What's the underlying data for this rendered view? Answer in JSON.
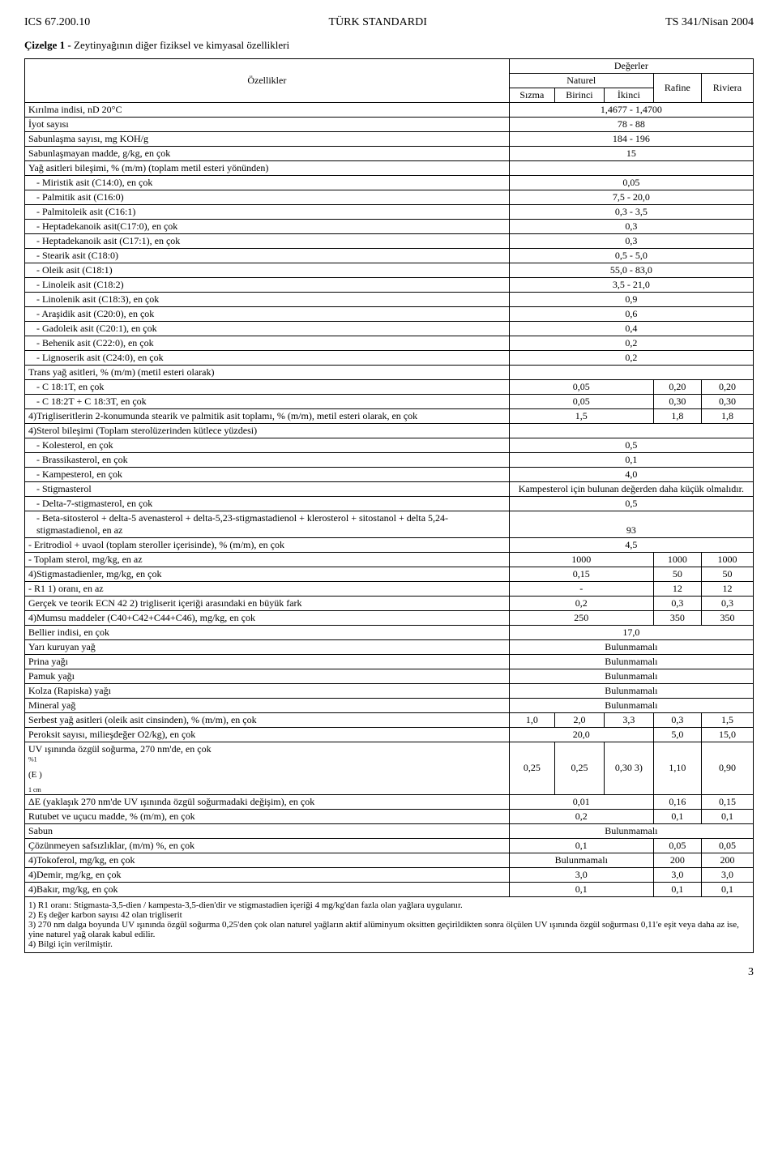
{
  "header": {
    "left": "ICS 67.200.10",
    "center": "TÜRK STANDARDI",
    "right": "TS 341/Nisan 2004"
  },
  "title_bold": "Çizelge 1 -",
  "title_rest": " Zeytinyağının diğer fiziksel ve kimyasal özellikleri",
  "col_headers": {
    "ozellikler": "Özellikler",
    "degerler": "Değerler",
    "naturel": "Naturel",
    "sizma": "Sızma",
    "birinci": "Birinci",
    "ikinci": "İkinci",
    "rafine": "Rafine",
    "riviera": "Riviera"
  },
  "rows": {
    "r1": {
      "label": "Kırılma indisi, nD 20°C",
      "val": "1,4677 - 1,4700"
    },
    "r2": {
      "label": "İyot sayısı",
      "val": "78 - 88"
    },
    "r3": {
      "label": "Sabunlaşma sayısı, mg KOH/g",
      "val": "184 - 196"
    },
    "r4": {
      "label": "Sabunlaşmayan madde, g/kg, en çok",
      "val": "15"
    },
    "r5": {
      "label": "Yağ asitleri bileşimi, % (m/m) (toplam metil esteri yönünden)"
    },
    "r5a": {
      "label": "- Miristik asit (C14:0), en çok",
      "val": "0,05"
    },
    "r5b": {
      "label": "- Palmitik asit (C16:0)",
      "val": "7,5 - 20,0"
    },
    "r5c": {
      "label": "- Palmitoleik asit (C16:1)",
      "val": "0,3 - 3,5"
    },
    "r5d": {
      "label": "- Heptadekanoik asit(C17:0), en çok",
      "val": "0,3"
    },
    "r5e": {
      "label": "- Heptadekanoik asit (C17:1), en çok",
      "val": "0,3"
    },
    "r5f": {
      "label": "- Stearik asit (C18:0)",
      "val": "0,5 - 5,0"
    },
    "r5g": {
      "label": "- Oleik asit (C18:1)",
      "val": "55,0 - 83,0"
    },
    "r5h": {
      "label": "- Linoleik asit (C18:2)",
      "val": "3,5 - 21,0"
    },
    "r5i": {
      "label": "- Linolenik asit (C18:3), en çok",
      "val": "0,9"
    },
    "r5j": {
      "label": "- Araşidik asit (C20:0), en çok",
      "val": "0,6"
    },
    "r5k": {
      "label": "- Gadoleik asit (C20:1), en çok",
      "val": "0,4"
    },
    "r5l": {
      "label": "- Behenik asit (C22:0), en çok",
      "val": "0,2"
    },
    "r5m": {
      "label": "- Lignoserik asit (C24:0), en çok",
      "val": "0,2"
    },
    "r6": {
      "label": "Trans yağ asitleri, % (m/m) (metil esteri olarak)"
    },
    "r6a": {
      "label": "- C 18:1T, en çok",
      "v1": "0,05",
      "v2": "0,20",
      "v3": "0,20"
    },
    "r6b": {
      "label": "- C 18:2T + C 18:3T, en çok",
      "v1": "0,05",
      "v2": "0,30",
      "v3": "0,30"
    },
    "r7": {
      "label": "4)Trigliseritlerin 2-konumunda stearik ve palmitik asit toplamı, % (m/m), metil esteri olarak, en çok",
      "v1": "1,5",
      "v2": "1,8",
      "v3": "1,8"
    },
    "r8": {
      "label": "4)Sterol bileşimi (Toplam sterolüzerinden kütlece yüzdesi)"
    },
    "r8a": {
      "label": "- Kolesterol, en çok",
      "val": "0,5"
    },
    "r8b": {
      "label": "- Brassikasterol, en çok",
      "val": "0,1"
    },
    "r8c": {
      "label": "- Kampesterol, en çok",
      "val": "4,0"
    },
    "r8d": {
      "label": "- Stigmasterol",
      "val": "Kampesterol için bulunan değerden daha küçük olmalıdır."
    },
    "r8e": {
      "label": "- Delta-7-stigmasterol, en çok",
      "val": "0,5"
    },
    "r8f": {
      "label": "- Beta-sitosterol + delta-5 avenasterol + delta-5,23-stigmastadienol + klerosterol + sitostanol + delta 5,24-stigmastadienol, en az",
      "val": "93"
    },
    "r9": {
      "label": "- Eritrodiol + uvaol (toplam steroller içerisinde), % (m/m), en çok",
      "val": "4,5"
    },
    "r10": {
      "label": "- Toplam sterol, mg/kg, en az",
      "v1": "1000",
      "v2": "1000",
      "v3": "1000"
    },
    "r11": {
      "label": "4)Stigmastadienler, mg/kg, en çok",
      "v1": "0,15",
      "v2": "50",
      "v3": "50"
    },
    "r12": {
      "label": "- R1 1) oranı, en az",
      "v1": "-",
      "v2": "12",
      "v3": "12"
    },
    "r13": {
      "label": "Gerçek ve teorik ECN 42 2) trigliserit içeriği arasındaki en büyük fark",
      "v1": "0,2",
      "v2": "0,3",
      "v3": "0,3"
    },
    "r14": {
      "label": "4)Mumsu maddeler (C40+C42+C44+C46), mg/kg, en çok",
      "v1": "250",
      "v2": "350",
      "v3": "350"
    },
    "r15": {
      "label": "Bellier indisi, en çok",
      "val": "17,0"
    },
    "r16": {
      "label": "Yarı kuruyan yağ",
      "val": "Bulunmamalı"
    },
    "r17": {
      "label": "Prina yağı",
      "val": "Bulunmamalı"
    },
    "r18": {
      "label": "Pamuk yağı",
      "val": "Bulunmamalı"
    },
    "r19": {
      "label": "Kolza (Rapiska) yağı",
      "val": "Bulunmamalı"
    },
    "r20": {
      "label": "Mineral yağ",
      "val": "Bulunmamalı"
    },
    "r21": {
      "label": "Serbest yağ asitleri (oleik asit cinsinden), % (m/m), en çok",
      "c1": "1,0",
      "c2": "2,0",
      "c3": "3,3",
      "c4": "0,3",
      "c5": "1,5"
    },
    "r22": {
      "label": "Peroksit sayısı, milieşdeğer O2/kg), en çok",
      "v1": "20,0",
      "v2": "5,0",
      "v3": "15,0"
    },
    "r23": {
      "label": "UV ışınında özgül soğurma, 270 nm'de, en çok",
      "formula": "(E      )",
      "sup": "%1",
      "sub": "1 cm",
      "c1": "0,25",
      "c2": "0,25",
      "c3": "0,30 3)",
      "c4": "1,10",
      "c5": "0,90"
    },
    "r24": {
      "label": "ΔE (yaklaşık 270 nm'de UV ışınında özgül soğurmadaki değişim), en çok",
      "v1": "0,01",
      "v2": "0,16",
      "v3": "0,15"
    },
    "r25": {
      "label": "Rutubet ve uçucu madde, % (m/m), en çok",
      "v1": "0,2",
      "v2": "0,1",
      "v3": "0,1"
    },
    "r26": {
      "label": "Sabun",
      "val": "Bulunmamalı"
    },
    "r27": {
      "label": "Çözünmeyen safsızlıklar, (m/m) %, en çok",
      "v1": "0,1",
      "v2": "0,05",
      "v3": "0,05"
    },
    "r28": {
      "label": "4)Tokoferol, mg/kg, en çok",
      "v1": "Bulunmamalı",
      "v2": "200",
      "v3": "200"
    },
    "r29": {
      "label": "4)Demir, mg/kg, en çok",
      "v1": "3,0",
      "v2": "3,0",
      "v3": "3,0"
    },
    "r30": {
      "label": "4)Bakır, mg/kg, en çok",
      "v1": "0,1",
      "v2": "0,1",
      "v3": "0,1"
    }
  },
  "footnotes": {
    "f1": "1) R1 oranı: Stigmasta-3,5-dien / kampesta-3,5-dien'dir ve stigmastadien içeriği 4 mg/kg'dan fazla olan yağlara uygulanır.",
    "f2": "2) Eş değer karbon sayısı 42 olan trigliserit",
    "f3": "3) 270 nm dalga boyunda UV ışınında özgül soğurma 0,25'den çok olan naturel yağların aktif alüminyum oksitten geçirildikten sonra ölçülen UV ışınında özgül soğurması 0,11'e eşit veya daha az ise, yine naturel yağ olarak kabul edilir.",
    "f4": "4) Bilgi için verilmiştir."
  },
  "page_number": "3"
}
